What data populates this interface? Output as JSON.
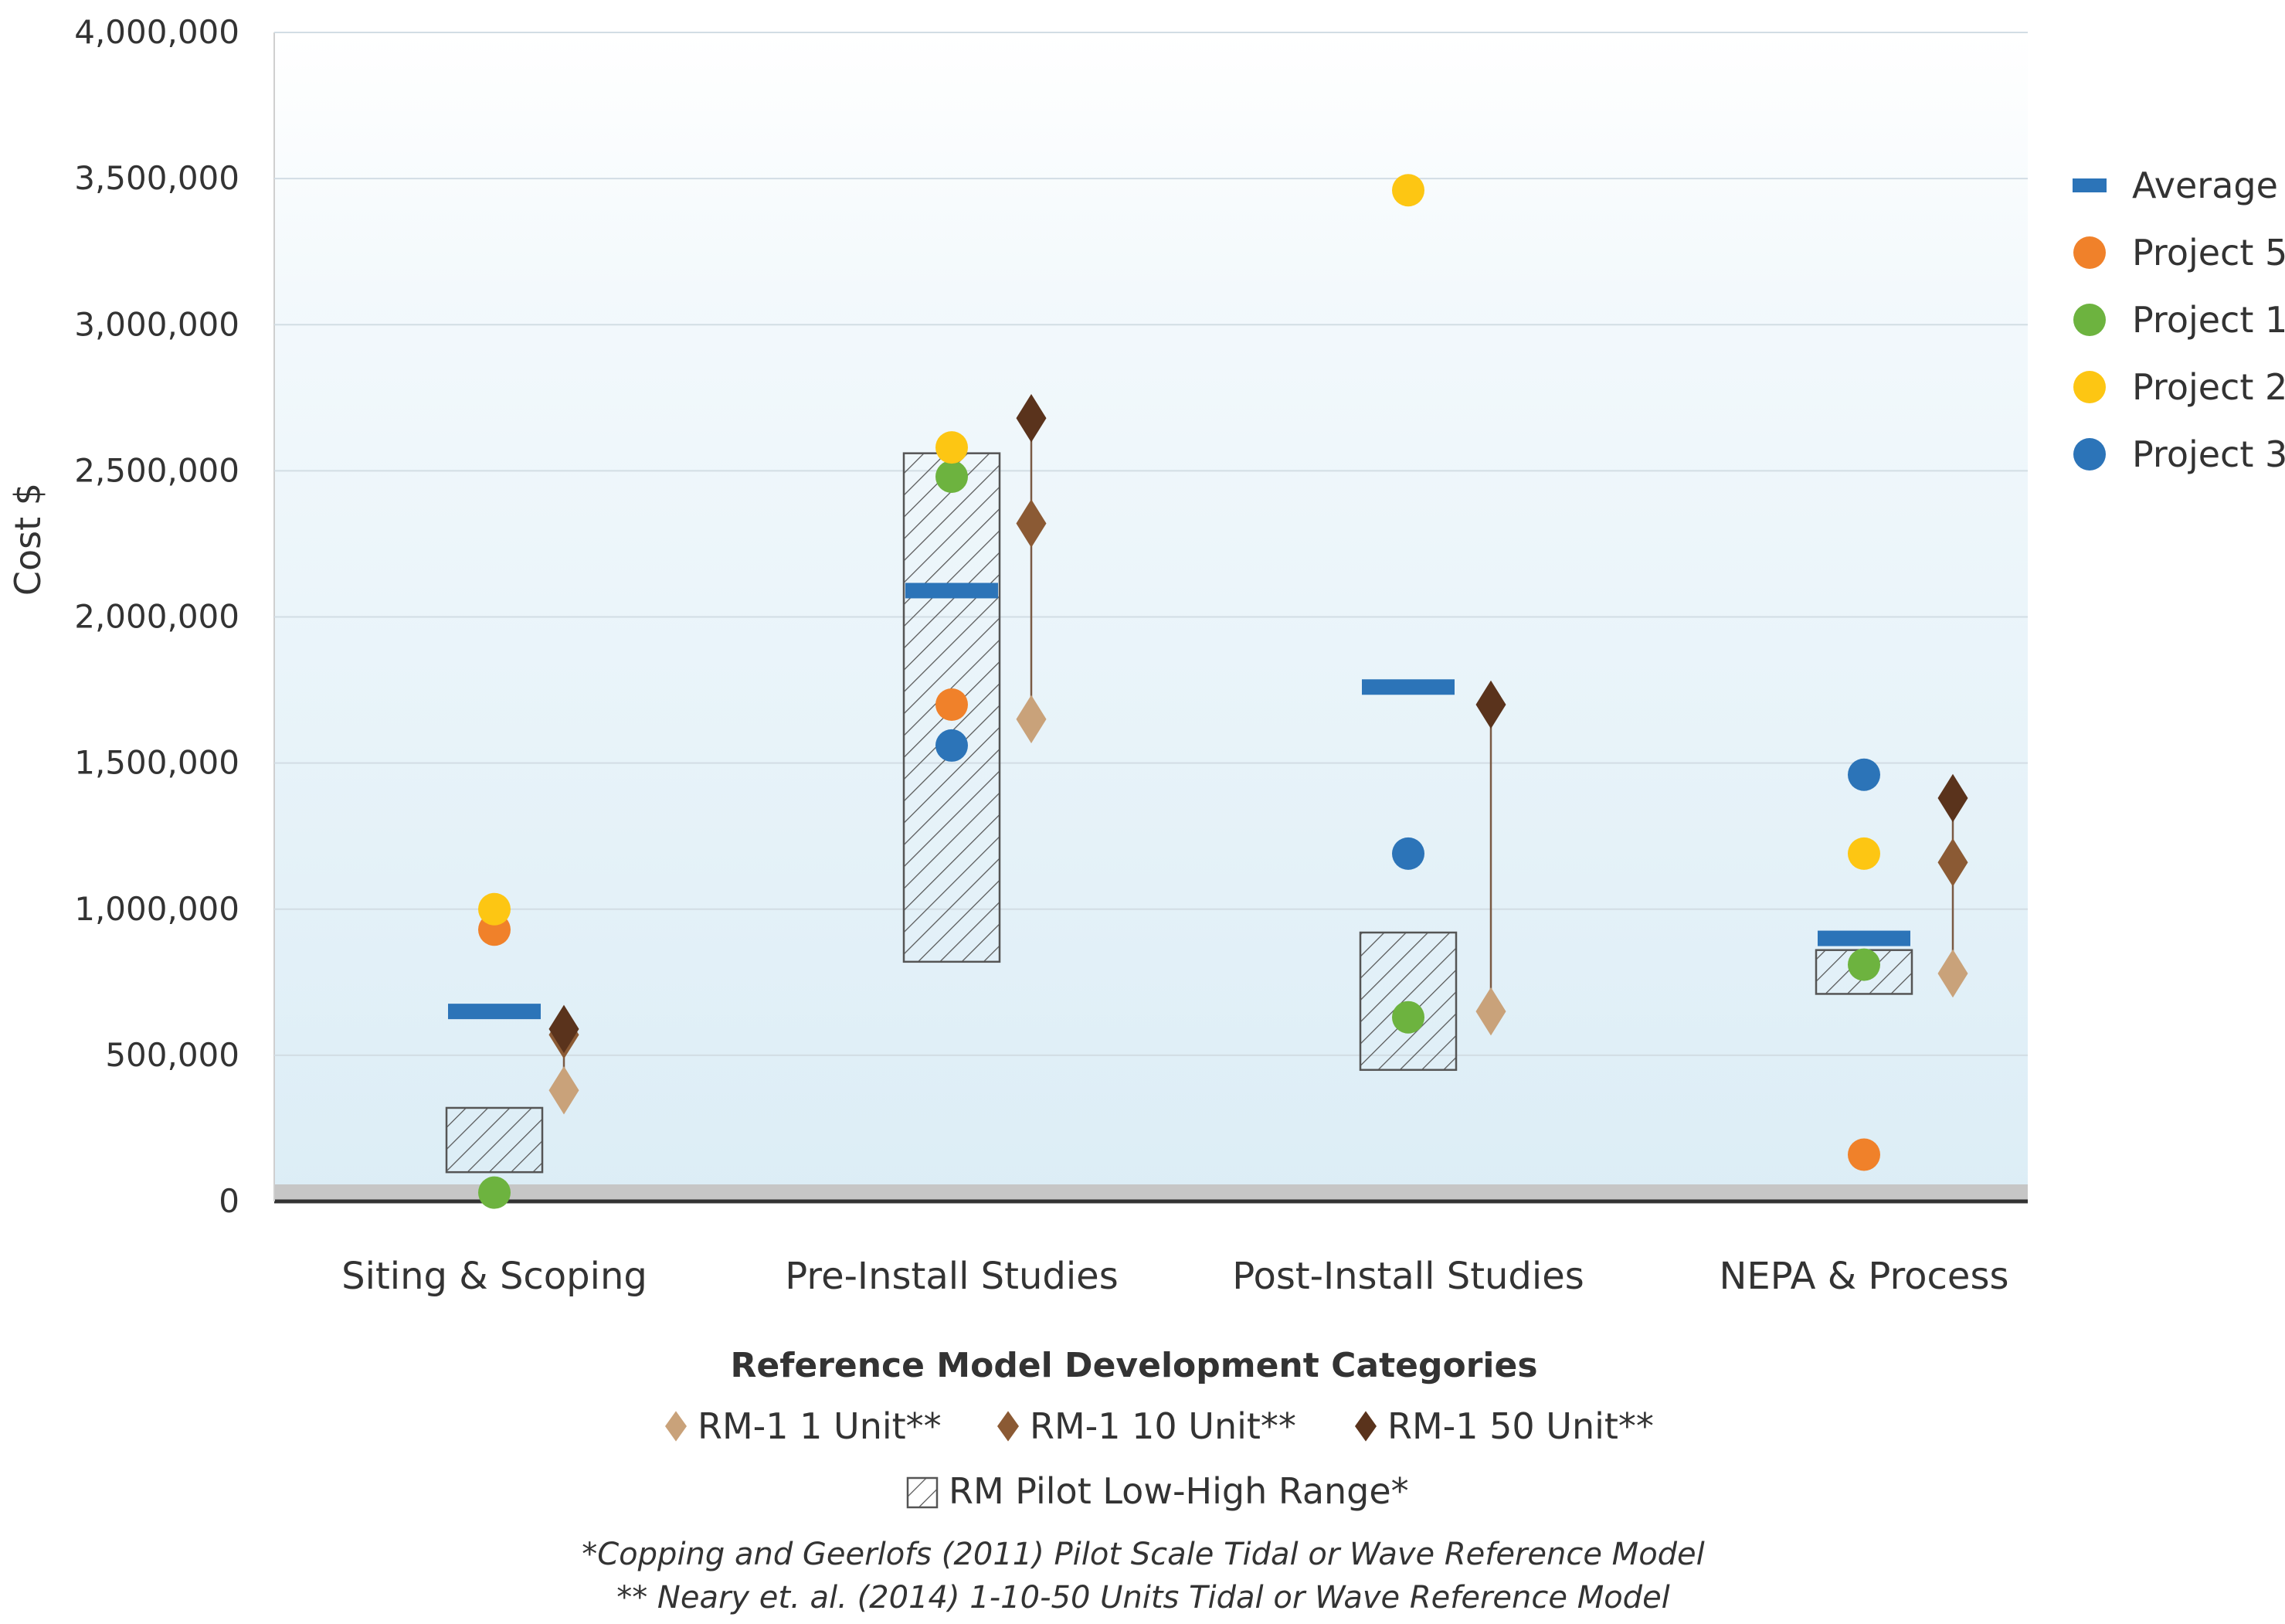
{
  "chart_data": {
    "type": "scatter",
    "ylabel": "Cost $",
    "xlabel": "Reference Model Development Categories",
    "ylim": [
      0,
      4000000
    ],
    "yticks": [
      0,
      500000,
      1000000,
      1500000,
      2000000,
      2500000,
      3000000,
      3500000,
      4000000
    ],
    "ytick_labels": [
      "0",
      "500,000",
      "1,000,000",
      "1,500,000",
      "2,000,000",
      "2,500,000",
      "3,000,000",
      "3,500,000",
      "4,000,000"
    ],
    "categories": [
      "Siting & Scoping",
      "Pre-Install Studies",
      "Post-Install Studies",
      "NEPA & Process"
    ],
    "grid": true,
    "legend_placement": "right",
    "series": [
      {
        "name": "Average",
        "marker": "bar",
        "color": "#2c74b8",
        "values": [
          650000,
          2090000,
          1760000,
          900000
        ]
      },
      {
        "name": "Project 5",
        "marker": "circle",
        "color": "#f0812a",
        "values": [
          930000,
          1700000,
          null,
          160000
        ]
      },
      {
        "name": "Project 1",
        "marker": "circle",
        "color": "#6db33f",
        "values": [
          30000,
          2480000,
          630000,
          810000
        ]
      },
      {
        "name": "Project 2",
        "marker": "circle",
        "color": "#fdc613",
        "values": [
          1000000,
          2580000,
          3460000,
          1190000
        ]
      },
      {
        "name": "Project 3",
        "marker": "circle",
        "color": "#2c74b8",
        "values": [
          null,
          1560000,
          1190000,
          1460000
        ]
      }
    ],
    "reference_series": [
      {
        "name": "RM-1 1 Unit**",
        "marker": "diamond",
        "color": "#c9a27a",
        "values": [
          380000,
          1650000,
          650000,
          780000
        ]
      },
      {
        "name": "RM-1 10 Unit**",
        "marker": "diamond",
        "color": "#8b5a34",
        "values": [
          570000,
          2320000,
          null,
          1160000
        ]
      },
      {
        "name": "RM-1 50 Unit**",
        "marker": "diamond",
        "color": "#5a331c",
        "values": [
          590000,
          2680000,
          1700000,
          1380000
        ]
      }
    ],
    "ranges": {
      "name": "RM Pilot Low-High Range*",
      "low": [
        100000,
        820000,
        450000,
        710000
      ],
      "high": [
        320000,
        2560000,
        920000,
        860000
      ]
    },
    "legend": {
      "right": [
        "Average",
        "Project 5",
        "Project 1",
        "Project 2",
        "Project 3"
      ],
      "bottom_row1": [
        "RM-1 1 Unit**",
        "RM-1 10 Unit**",
        "RM-1 50 Unit**"
      ],
      "bottom_row2": "RM Pilot Low-High Range*"
    },
    "notes": [
      "*Copping and Geerlofs (2011) Pilot Scale Tidal or Wave Reference Model",
      "** Neary et. al. (2014) 1-10-50 Units Tidal or Wave Reference Model"
    ]
  }
}
